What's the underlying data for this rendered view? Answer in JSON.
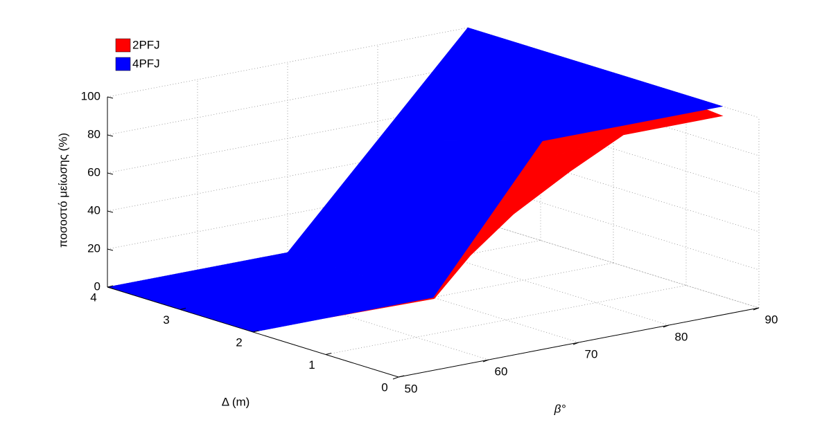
{
  "chart_data": {
    "type": "surface3d",
    "xlabel": "β°",
    "ylabel": "Δ (m)",
    "zlabel": "ποσοστό μείωσης (%)",
    "xlim": [
      50,
      90
    ],
    "ylim": [
      0,
      4
    ],
    "zlim": [
      0,
      100
    ],
    "xticks": [
      50,
      60,
      70,
      80,
      90
    ],
    "yticks": [
      0,
      1,
      2,
      3,
      4
    ],
    "zticks": [
      0,
      20,
      40,
      60,
      80,
      100
    ],
    "grid": true,
    "legend": "upper left",
    "series": [
      {
        "name": "2PFJ",
        "color": "#ff0000",
        "x": [
          [
            58,
            62,
            67.5,
            73,
            79,
            90
          ],
          [
            58,
            62,
            67.5,
            73,
            79,
            90
          ]
        ],
        "y": [
          [
            2,
            2,
            2,
            2,
            2,
            2
          ],
          [
            0.5,
            0.5,
            0.5,
            0.5,
            0.5,
            0.5
          ]
        ],
        "z": [
          [
            0,
            0,
            0,
            20,
            60,
            100
          ],
          [
            28,
            47,
            67,
            81,
            95,
            95
          ]
        ]
      },
      {
        "name": "4PFJ",
        "color": "#0000ff",
        "x": [
          [
            50,
            70,
            80,
            90
          ],
          [
            50,
            70,
            70,
            90
          ]
        ],
        "y": [
          [
            4,
            4,
            4,
            4
          ],
          [
            2,
            2,
            0.5,
            0.5
          ]
        ],
        "z": [
          [
            0,
            0,
            50,
            100
          ],
          [
            0,
            0,
            100,
            100
          ]
        ]
      }
    ]
  }
}
